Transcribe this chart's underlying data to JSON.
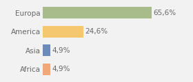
{
  "categories": [
    "Europa",
    "America",
    "Asia",
    "Africa"
  ],
  "values": [
    65.6,
    24.6,
    4.9,
    4.9
  ],
  "labels": [
    "65,6%",
    "24,6%",
    "4,9%",
    "4,9%"
  ],
  "bar_colors": [
    "#a8bb8a",
    "#f5c76e",
    "#6b8cba",
    "#f0a878"
  ],
  "background_color": "#f2f2f2",
  "xlim": [
    0,
    88
  ],
  "bar_height": 0.62,
  "label_fontsize": 7.5,
  "category_fontsize": 7.5,
  "fig_width": 2.8,
  "fig_height": 1.2,
  "dpi": 100
}
